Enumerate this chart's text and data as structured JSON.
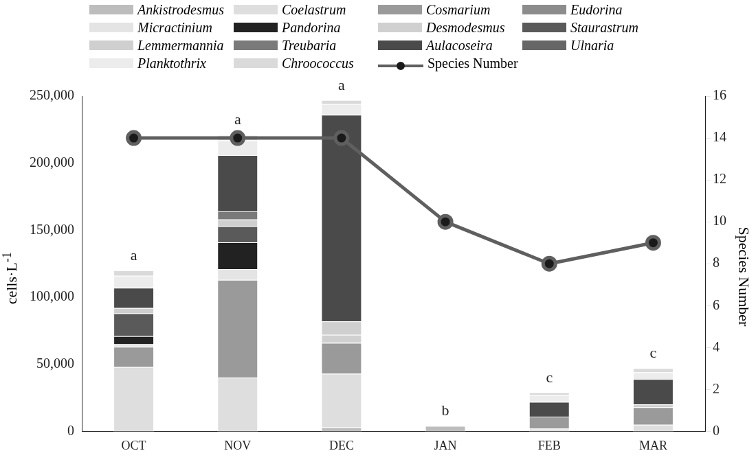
{
  "chart_data": {
    "type": "bar",
    "stacked": true,
    "categories": [
      "OCT",
      "NOV",
      "DEC",
      "JAN",
      "FEB",
      "MAR"
    ],
    "ylabel": "cells·L$^{-1}$",
    "y2label": "Species Number",
    "ylim": [
      0,
      250000
    ],
    "yticks": [
      {
        "value": 0,
        "label": "0"
      },
      {
        "value": 50000,
        "label": "50,000"
      },
      {
        "value": 100000,
        "label": "100,000"
      },
      {
        "value": 150000,
        "label": "150,000"
      },
      {
        "value": 200000,
        "label": "200,000"
      },
      {
        "value": 250000,
        "label": "250,000"
      }
    ],
    "y2lim": [
      0,
      16
    ],
    "y2ticks": [
      0,
      2,
      4,
      6,
      8,
      10,
      12,
      14,
      16
    ],
    "legend": "top",
    "grid": false,
    "marker": "circle",
    "series": [
      {
        "name": "Ankistrodesmus",
        "color": "#bdbdbd",
        "values": [
          null,
          null,
          3000,
          4000,
          null,
          null
        ]
      },
      {
        "name": "Coelastrum",
        "color": "#dedede",
        "values": [
          48000,
          40000,
          40000,
          null,
          2000,
          5000
        ]
      },
      {
        "name": "Cosmarium",
        "color": "#9a9a9a",
        "values": [
          15000,
          73000,
          23000,
          null,
          9000,
          13000
        ]
      },
      {
        "name": "Eudorina",
        "color": "#8c8c8c",
        "values": [
          null,
          null,
          null,
          null,
          null,
          null
        ]
      },
      {
        "name": "Micractinium",
        "color": "#e4e4e4",
        "values": [
          2000,
          8000,
          null,
          null,
          null,
          null
        ]
      },
      {
        "name": "Pandorina",
        "color": "#222222",
        "values": [
          6000,
          20000,
          null,
          null,
          null,
          null
        ]
      },
      {
        "name": "Desmodesmus",
        "color": "#d0d0d0",
        "values": [
          null,
          null,
          6000,
          null,
          null,
          null
        ]
      },
      {
        "name": "Staurastrum",
        "color": "#5a5a5a",
        "values": [
          17000,
          12000,
          null,
          null,
          null,
          null
        ]
      },
      {
        "name": "Lemmermannia",
        "color": "#cfcfcf",
        "values": [
          4000,
          5000,
          10000,
          null,
          null,
          2000
        ]
      },
      {
        "name": "Treubaria",
        "color": "#7a7a7a",
        "values": [
          null,
          6000,
          null,
          null,
          null,
          null
        ]
      },
      {
        "name": "Aulacoseira",
        "color": "#4a4a4a",
        "values": [
          15000,
          42000,
          154000,
          null,
          11000,
          19000
        ]
      },
      {
        "name": "Ulnaria",
        "color": "#666666",
        "values": [
          null,
          null,
          null,
          null,
          null,
          null
        ]
      },
      {
        "name": "Planktothrix",
        "color": "#ececec",
        "values": [
          9000,
          11000,
          8000,
          null,
          5000,
          5000
        ]
      },
      {
        "name": "Chroococcus",
        "color": "#dadada",
        "values": [
          4000,
          4000,
          3000,
          null,
          2000,
          3000
        ]
      },
      {
        "name": "Species Number",
        "type": "line",
        "axis": "y2",
        "color": "#5f5f5f",
        "values": [
          14,
          14,
          14,
          10,
          8,
          9
        ]
      }
    ],
    "annotations": [
      {
        "text": "a",
        "x": "OCT",
        "y": 120000
      },
      {
        "text": "a",
        "x": "NOV",
        "y": 221000
      },
      {
        "text": "a",
        "x": "DEC",
        "y": 247000
      },
      {
        "text": "b",
        "x": "JAN",
        "y": 4000
      },
      {
        "text": "c",
        "x": "FEB",
        "y": 29000
      },
      {
        "text": "c",
        "x": "MAR",
        "y": 47000
      }
    ]
  }
}
